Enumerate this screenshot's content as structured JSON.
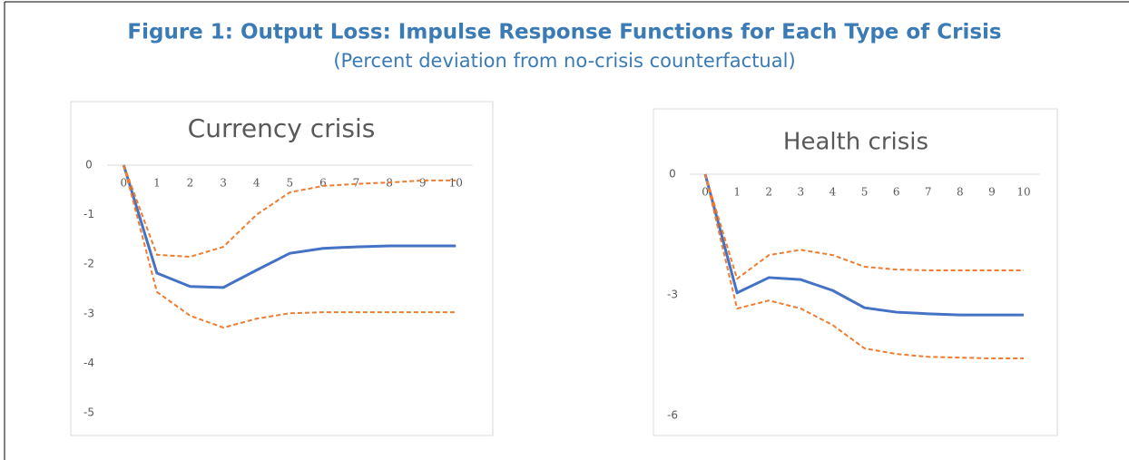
{
  "header": {
    "title": "Figure 1: Output Loss: Impulse Response Functions for Each Type of Crisis",
    "subtitle": "(Percent deviation from no-crisis counterfactual)"
  },
  "chart_data": [
    {
      "type": "line",
      "title": "Currency crisis",
      "categories": [
        "0",
        "1",
        "2",
        "3",
        "4",
        "5",
        "6",
        "7",
        "8",
        "9",
        "10"
      ],
      "ylim": [
        -5,
        0
      ],
      "yticks": [
        0,
        -1,
        -2,
        -3,
        -4,
        -5
      ],
      "grid": false,
      "series": [
        {
          "color": "#4472c4",
          "dashed": false,
          "values": [
            0,
            -2.18,
            -2.45,
            -2.47,
            -2.12,
            -1.78,
            -1.68,
            -1.65,
            -1.63,
            -1.63,
            -1.63
          ]
        },
        {
          "color": "#ed7d31",
          "dashed": true,
          "values": [
            0,
            -1.81,
            -1.85,
            -1.65,
            -1.0,
            -0.55,
            -0.42,
            -0.38,
            -0.35,
            -0.31,
            -0.31
          ]
        },
        {
          "color": "#ed7d31",
          "dashed": true,
          "values": [
            0,
            -2.56,
            -3.04,
            -3.28,
            -3.1,
            -2.99,
            -2.97,
            -2.97,
            -2.97,
            -2.97,
            -2.97
          ]
        }
      ]
    },
    {
      "type": "line",
      "title": "Health crisis",
      "categories": [
        "0",
        "1",
        "2",
        "3",
        "4",
        "5",
        "6",
        "7",
        "8",
        "9",
        "10"
      ],
      "ylim": [
        -6,
        0
      ],
      "yticks": [
        0,
        -3,
        -6
      ],
      "grid": false,
      "series": [
        {
          "color": "#4472c4",
          "dashed": false,
          "values": [
            0,
            -2.95,
            -2.57,
            -2.62,
            -2.89,
            -3.32,
            -3.43,
            -3.47,
            -3.5,
            -3.5,
            -3.5
          ]
        },
        {
          "color": "#ed7d31",
          "dashed": true,
          "values": [
            0,
            -2.6,
            -2.01,
            -1.88,
            -2.01,
            -2.3,
            -2.37,
            -2.39,
            -2.39,
            -2.39,
            -2.39
          ]
        },
        {
          "color": "#ed7d31",
          "dashed": true,
          "values": [
            0,
            -3.34,
            -3.14,
            -3.34,
            -3.75,
            -4.33,
            -4.47,
            -4.54,
            -4.56,
            -4.58,
            -4.58
          ]
        }
      ]
    }
  ]
}
